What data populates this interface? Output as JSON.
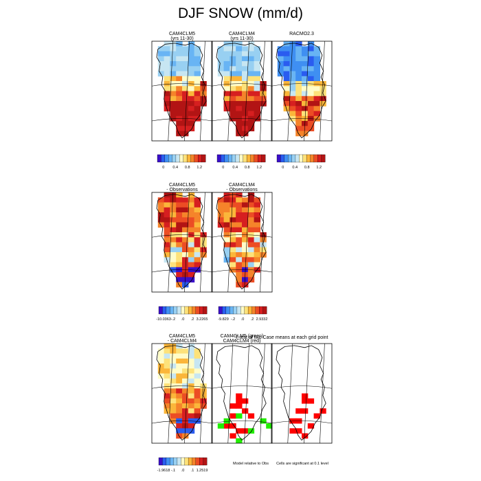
{
  "title": "DJF SNOW (mm/d)",
  "colors": {
    "palette": [
      "#3a0fc8",
      "#2a5cf0",
      "#3f8ff2",
      "#68b4f4",
      "#98d0f2",
      "#c7e6f2",
      "#fffcc8",
      "#fde27a",
      "#fbb63a",
      "#f5842a",
      "#ec4d24",
      "#d61f20",
      "#b21414"
    ],
    "coastline": "#000000",
    "frame": "#000000",
    "sig_red": "#ff0000",
    "sig_green": "#22ee00"
  },
  "chart_data": [
    {
      "type": "heatmap",
      "row": 1,
      "col": 1,
      "title": "CAM4CLM5",
      "subtitle": "(yrs 11-30)",
      "field": "absolute",
      "pattern": "a"
    },
    {
      "type": "heatmap",
      "row": 1,
      "col": 2,
      "title": "CAM4CLM4",
      "subtitle": "(yrs 11-30)",
      "field": "absolute",
      "pattern": "b"
    },
    {
      "type": "heatmap",
      "row": 1,
      "col": 3,
      "title": "RACMO2.3",
      "subtitle": "",
      "field": "absolute",
      "pattern": "c"
    },
    {
      "type": "heatmap",
      "row": 2,
      "col": 1,
      "title": "CAM4CLM5",
      "subtitle": "- Observations",
      "field": "bias",
      "pattern": "a"
    },
    {
      "type": "heatmap",
      "row": 2,
      "col": 2,
      "title": "CAM4CLM4",
      "subtitle": "- Observations",
      "field": "bias",
      "pattern": "b"
    },
    {
      "type": "heatmap",
      "row": 3,
      "col": 1,
      "title": "CAM4CLM5",
      "subtitle": "- CAM4CLM4",
      "field": "diff",
      "pattern": "a"
    },
    {
      "type": "heatmap",
      "row": 3,
      "col": 2,
      "title": "CAM4CLM5 (green)",
      "subtitle": "CAM4CLM4 (red)",
      "field": "significance",
      "pattern": "a"
    },
    {
      "type": "heatmap",
      "row": 3,
      "col": 3,
      "title": "",
      "subtitle": "",
      "field": "significance",
      "pattern": "b"
    }
  ],
  "colorbars": [
    {
      "labels": [
        "0",
        "0.4",
        "0.8",
        "1.2"
      ]
    },
    {
      "labels": [
        "0",
        "0.4",
        "0.8",
        "1.2"
      ]
    },
    {
      "labels": [
        "0",
        "0.4",
        "0.8",
        "1.2"
      ]
    },
    {
      "labels": [
        "-10.0363",
        "-.2",
        ".0",
        ".2",
        "3.2265"
      ]
    },
    {
      "labels": [
        "-9.829",
        "-.2",
        ".0",
        ".2",
        "2.9332"
      ]
    },
    {
      "labels": [
        "-1.9618",
        "-.1",
        ".0",
        ".1",
        "1.2519"
      ]
    }
  ],
  "annotations": {
    "ttest_title": "T-test of two Case means at each grid point",
    "model_relative": "Model relative to Obs",
    "cells_significant": "Cells are significant at 0.1 level"
  }
}
